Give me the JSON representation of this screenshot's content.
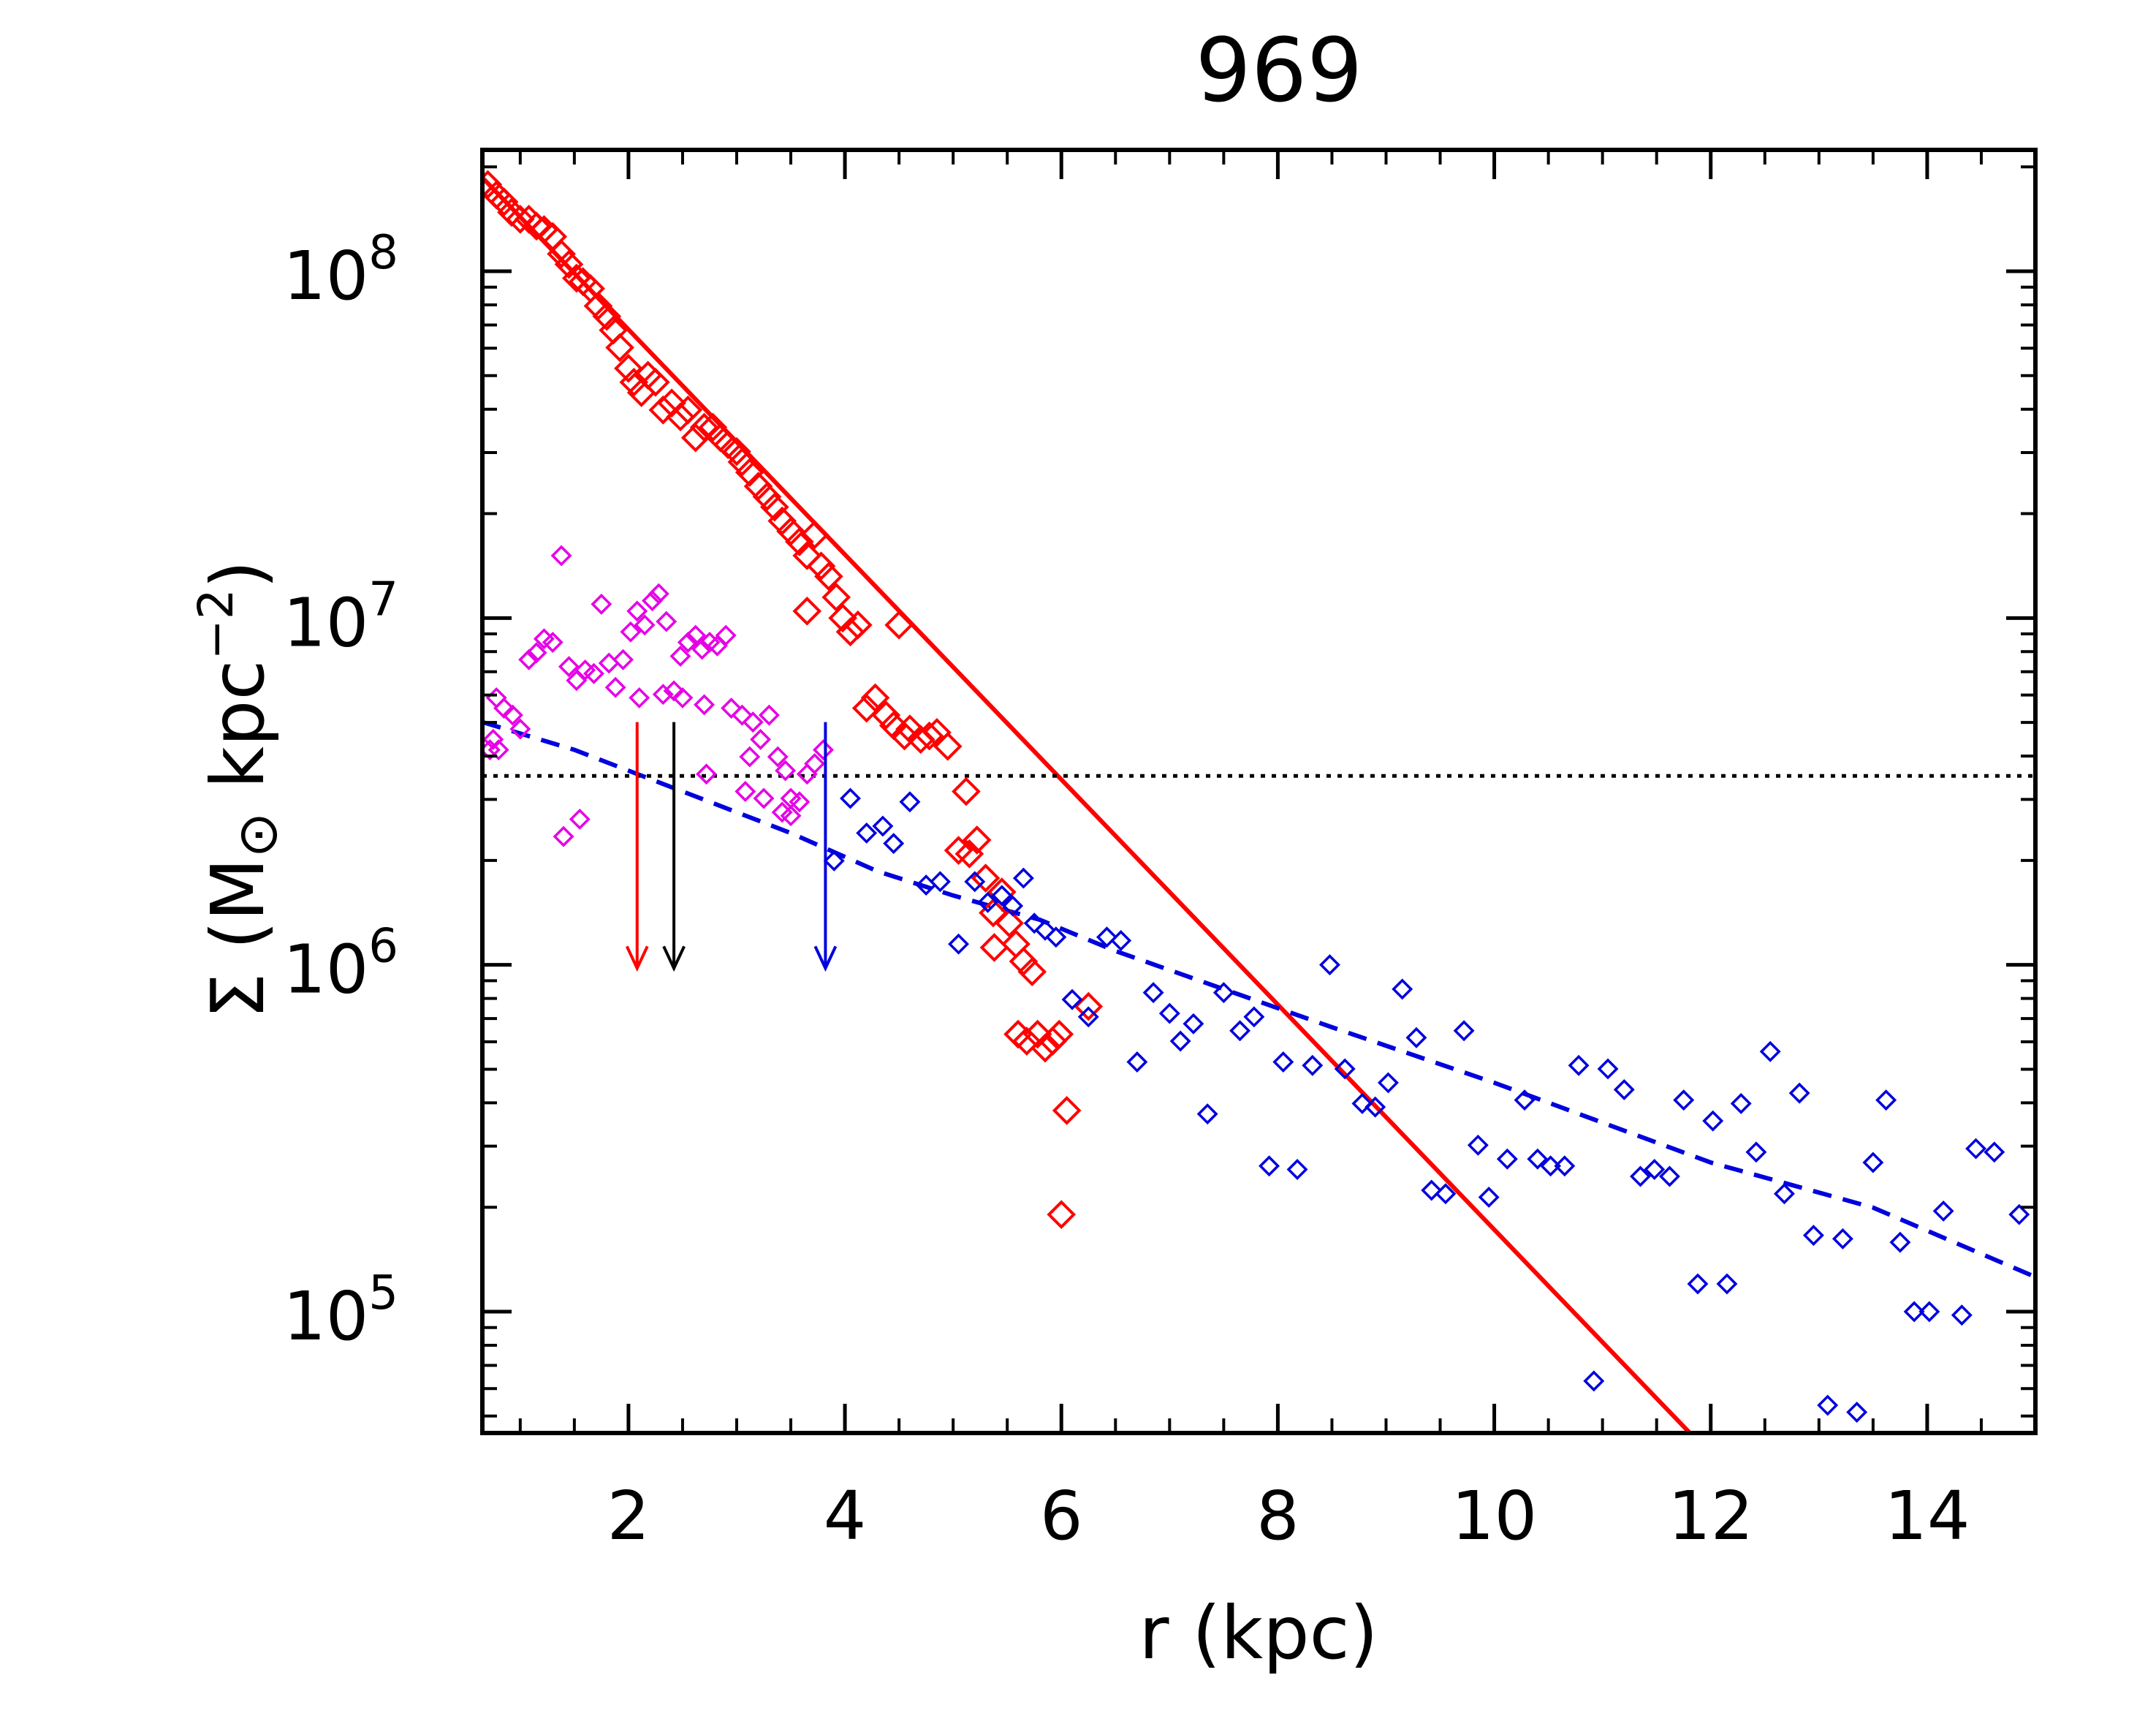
{
  "chart_data": {
    "type": "scatter",
    "title": "969",
    "xlabel": "r (kpc)",
    "ylabel_parts": [
      "Σ (M",
      "⊙",
      " kpc",
      "−2",
      ")"
    ],
    "xlim": [
      0.65,
      15.0
    ],
    "ylim_log10": [
      4.65,
      8.35
    ],
    "x_ticks": [
      2,
      4,
      6,
      8,
      10,
      12,
      14
    ],
    "x_tick_labels": [
      "2",
      "4",
      "6",
      "8",
      "10",
      "12",
      "14"
    ],
    "y_ticks_log10": [
      5,
      6,
      7,
      8
    ],
    "y_tick_labels": [
      {
        "base": "10",
        "exp": "5"
      },
      {
        "base": "10",
        "exp": "6"
      },
      {
        "base": "10",
        "exp": "7"
      },
      {
        "base": "10",
        "exp": "8"
      }
    ],
    "colors": {
      "red": "#ff0000",
      "magenta": "#e600e6",
      "blue": "#0000dd",
      "black": "#000000"
    },
    "lines": [
      {
        "name": "red exponential fit",
        "style": "solid",
        "color": "red",
        "x": [
          0.65,
          11.9
        ],
        "y_log10": [
          8.27,
          4.62
        ]
      },
      {
        "name": "blue dashed profile",
        "style": "dashed",
        "color": "blue",
        "x": [
          0.65,
          1.5,
          2.5,
          3.5,
          4.3,
          5.0,
          5.8,
          6.5,
          7.5,
          8.5,
          10.0,
          12.0,
          13.5,
          15.0
        ],
        "y_log10": [
          6.7,
          6.62,
          6.5,
          6.38,
          6.27,
          6.2,
          6.13,
          6.04,
          5.93,
          5.82,
          5.66,
          5.43,
          5.3,
          5.1
        ]
      },
      {
        "name": "dotted threshold",
        "style": "dotted",
        "color": "black",
        "x": [
          0.65,
          15.0
        ],
        "y_log10": [
          6.545,
          6.545
        ]
      }
    ],
    "arrows": [
      {
        "color": "red",
        "x": 2.08,
        "y_top_log10": 6.7,
        "y_bottom_log10": 5.99
      },
      {
        "color": "black",
        "x": 2.42,
        "y_top_log10": 6.7,
        "y_bottom_log10": 5.99
      },
      {
        "color": "blue",
        "x": 3.82,
        "y_top_log10": 6.7,
        "y_bottom_log10": 5.99
      }
    ],
    "series": [
      {
        "name": "red points",
        "color": "red",
        "marker": "diamond-large",
        "points": [
          [
            0.7,
            8.25
          ],
          [
            0.78,
            8.22
          ],
          [
            0.85,
            8.2
          ],
          [
            0.92,
            8.17
          ],
          [
            1.0,
            8.15
          ],
          [
            1.08,
            8.15
          ],
          [
            1.15,
            8.13
          ],
          [
            1.22,
            8.12
          ],
          [
            1.3,
            8.1
          ],
          [
            1.38,
            8.05
          ],
          [
            1.45,
            8.02
          ],
          [
            1.52,
            7.98
          ],
          [
            1.58,
            7.97
          ],
          [
            1.65,
            7.95
          ],
          [
            1.72,
            7.9
          ],
          [
            1.8,
            7.87
          ],
          [
            1.86,
            7.83
          ],
          [
            1.92,
            7.78
          ],
          [
            2.0,
            7.72
          ],
          [
            2.05,
            7.68
          ],
          [
            2.12,
            7.65
          ],
          [
            2.18,
            7.7
          ],
          [
            2.25,
            7.68
          ],
          [
            2.32,
            7.6
          ],
          [
            2.4,
            7.62
          ],
          [
            2.48,
            7.58
          ],
          [
            2.55,
            7.6
          ],
          [
            2.62,
            7.52
          ],
          [
            2.7,
            7.55
          ],
          [
            2.78,
            7.55
          ],
          [
            2.85,
            7.52
          ],
          [
            2.92,
            7.5
          ],
          [
            3.0,
            7.48
          ],
          [
            3.05,
            7.45
          ],
          [
            3.12,
            7.42
          ],
          [
            3.2,
            7.38
          ],
          [
            3.28,
            7.35
          ],
          [
            3.35,
            7.32
          ],
          [
            3.42,
            7.28
          ],
          [
            3.5,
            7.25
          ],
          [
            3.58,
            7.22
          ],
          [
            3.65,
            7.18
          ],
          [
            3.72,
            7.24
          ],
          [
            3.78,
            7.15
          ],
          [
            3.85,
            7.12
          ],
          [
            3.92,
            7.06
          ],
          [
            3.98,
            7.0
          ],
          [
            4.05,
            6.96
          ],
          [
            4.12,
            6.98
          ],
          [
            3.65,
            7.02
          ],
          [
            4.5,
            6.98
          ],
          [
            4.2,
            6.74
          ],
          [
            4.28,
            6.77
          ],
          [
            4.38,
            6.72
          ],
          [
            4.45,
            6.69
          ],
          [
            4.55,
            6.66
          ],
          [
            4.6,
            6.68
          ],
          [
            4.7,
            6.65
          ],
          [
            4.78,
            6.66
          ],
          [
            4.85,
            6.67
          ],
          [
            4.95,
            6.63
          ],
          [
            5.12,
            6.5
          ],
          [
            5.05,
            6.33
          ],
          [
            5.15,
            6.32
          ],
          [
            5.22,
            6.36
          ],
          [
            5.3,
            6.25
          ],
          [
            5.37,
            6.15
          ],
          [
            5.45,
            6.21
          ],
          [
            5.52,
            6.12
          ],
          [
            5.38,
            6.05
          ],
          [
            5.58,
            6.06
          ],
          [
            5.65,
            6.01
          ],
          [
            5.73,
            5.98
          ],
          [
            5.6,
            5.8
          ],
          [
            5.68,
            5.78
          ],
          [
            5.78,
            5.8
          ],
          [
            5.85,
            5.76
          ],
          [
            5.92,
            5.78
          ],
          [
            5.98,
            5.8
          ],
          [
            6.05,
            5.58
          ],
          [
            6.25,
            5.88
          ],
          [
            6.0,
            5.28
          ]
        ]
      },
      {
        "name": "magenta points",
        "color": "magenta",
        "marker": "diamond-small",
        "points": [
          [
            0.72,
            6.62
          ],
          [
            0.78,
            6.77
          ],
          [
            0.85,
            6.74
          ],
          [
            0.93,
            6.72
          ],
          [
            1.0,
            6.68
          ],
          [
            1.08,
            6.88
          ],
          [
            1.15,
            6.9
          ],
          [
            1.22,
            6.94
          ],
          [
            1.3,
            6.93
          ],
          [
            1.38,
            7.18
          ],
          [
            1.45,
            6.86
          ],
          [
            1.52,
            6.82
          ],
          [
            1.6,
            6.85
          ],
          [
            1.68,
            6.84
          ],
          [
            1.75,
            7.04
          ],
          [
            1.82,
            6.87
          ],
          [
            1.88,
            6.8
          ],
          [
            1.95,
            6.88
          ],
          [
            2.02,
            6.96
          ],
          [
            2.08,
            7.02
          ],
          [
            2.15,
            6.98
          ],
          [
            2.22,
            7.05
          ],
          [
            2.28,
            7.07
          ],
          [
            2.35,
            6.99
          ],
          [
            2.42,
            6.79
          ],
          [
            2.48,
            6.89
          ],
          [
            2.55,
            6.93
          ],
          [
            2.62,
            6.95
          ],
          [
            2.68,
            6.91
          ],
          [
            2.75,
            6.93
          ],
          [
            2.82,
            6.92
          ],
          [
            2.9,
            6.95
          ],
          [
            2.1,
            6.77
          ],
          [
            2.32,
            6.78
          ],
          [
            2.5,
            6.77
          ],
          [
            2.7,
            6.75
          ],
          [
            2.95,
            6.74
          ],
          [
            3.05,
            6.72
          ],
          [
            3.15,
            6.7
          ],
          [
            3.22,
            6.65
          ],
          [
            3.3,
            6.72
          ],
          [
            3.38,
            6.6
          ],
          [
            3.45,
            6.56
          ],
          [
            3.5,
            6.48
          ],
          [
            3.58,
            6.47
          ],
          [
            3.65,
            6.55
          ],
          [
            3.72,
            6.58
          ],
          [
            3.8,
            6.62
          ],
          [
            3.12,
            6.6
          ],
          [
            3.25,
            6.48
          ],
          [
            3.42,
            6.44
          ],
          [
            3.5,
            6.43
          ],
          [
            2.72,
            6.55
          ],
          [
            3.08,
            6.5
          ],
          [
            1.4,
            6.37
          ],
          [
            1.55,
            6.42
          ],
          [
            0.8,
            6.62
          ],
          [
            0.75,
            6.65
          ]
        ]
      },
      {
        "name": "blue points",
        "color": "blue",
        "marker": "diamond-small",
        "points": [
          [
            3.9,
            6.3
          ],
          [
            4.05,
            6.48
          ],
          [
            4.2,
            6.38
          ],
          [
            4.35,
            6.4
          ],
          [
            4.45,
            6.35
          ],
          [
            4.6,
            6.47
          ],
          [
            4.75,
            6.23
          ],
          [
            4.88,
            6.24
          ],
          [
            5.05,
            6.06
          ],
          [
            5.2,
            6.24
          ],
          [
            5.32,
            6.18
          ],
          [
            5.45,
            6.2
          ],
          [
            5.55,
            6.17
          ],
          [
            5.65,
            6.25
          ],
          [
            5.75,
            6.12
          ],
          [
            5.85,
            6.1
          ],
          [
            5.95,
            6.08
          ],
          [
            6.1,
            5.9
          ],
          [
            6.25,
            5.85
          ],
          [
            6.42,
            6.08
          ],
          [
            6.55,
            6.07
          ],
          [
            6.7,
            5.72
          ],
          [
            6.85,
            5.92
          ],
          [
            7.0,
            5.86
          ],
          [
            7.1,
            5.78
          ],
          [
            7.22,
            5.83
          ],
          [
            7.35,
            5.57
          ],
          [
            7.5,
            5.92
          ],
          [
            7.65,
            5.81
          ],
          [
            7.78,
            5.85
          ],
          [
            7.92,
            5.42
          ],
          [
            8.05,
            5.72
          ],
          [
            8.18,
            5.41
          ],
          [
            8.32,
            5.71
          ],
          [
            8.48,
            6.0
          ],
          [
            8.62,
            5.7
          ],
          [
            8.78,
            5.6
          ],
          [
            8.9,
            5.59
          ],
          [
            9.02,
            5.66
          ],
          [
            9.15,
            5.93
          ],
          [
            9.28,
            5.79
          ],
          [
            9.42,
            5.35
          ],
          [
            9.55,
            5.34
          ],
          [
            9.72,
            5.81
          ],
          [
            9.85,
            5.48
          ],
          [
            9.95,
            5.33
          ],
          [
            10.12,
            5.44
          ],
          [
            10.28,
            5.61
          ],
          [
            10.4,
            5.44
          ],
          [
            10.52,
            5.42
          ],
          [
            10.65,
            5.42
          ],
          [
            10.78,
            5.71
          ],
          [
            10.92,
            4.8
          ],
          [
            11.05,
            5.7
          ],
          [
            11.2,
            5.64
          ],
          [
            11.35,
            5.39
          ],
          [
            11.48,
            5.41
          ],
          [
            11.62,
            5.39
          ],
          [
            11.75,
            5.61
          ],
          [
            11.88,
            5.08
          ],
          [
            12.02,
            5.55
          ],
          [
            12.15,
            5.08
          ],
          [
            12.28,
            5.6
          ],
          [
            12.42,
            5.46
          ],
          [
            12.55,
            5.75
          ],
          [
            12.68,
            5.34
          ],
          [
            12.82,
            5.63
          ],
          [
            12.95,
            5.22
          ],
          [
            13.08,
            4.73
          ],
          [
            13.22,
            5.21
          ],
          [
            13.35,
            4.71
          ],
          [
            13.5,
            5.43
          ],
          [
            13.62,
            5.61
          ],
          [
            13.75,
            5.2
          ],
          [
            13.88,
            5.0
          ],
          [
            14.02,
            5.0
          ],
          [
            14.15,
            5.29
          ],
          [
            14.32,
            4.99
          ],
          [
            14.45,
            5.47
          ],
          [
            14.62,
            5.46
          ],
          [
            14.85,
            5.28
          ]
        ]
      }
    ]
  }
}
